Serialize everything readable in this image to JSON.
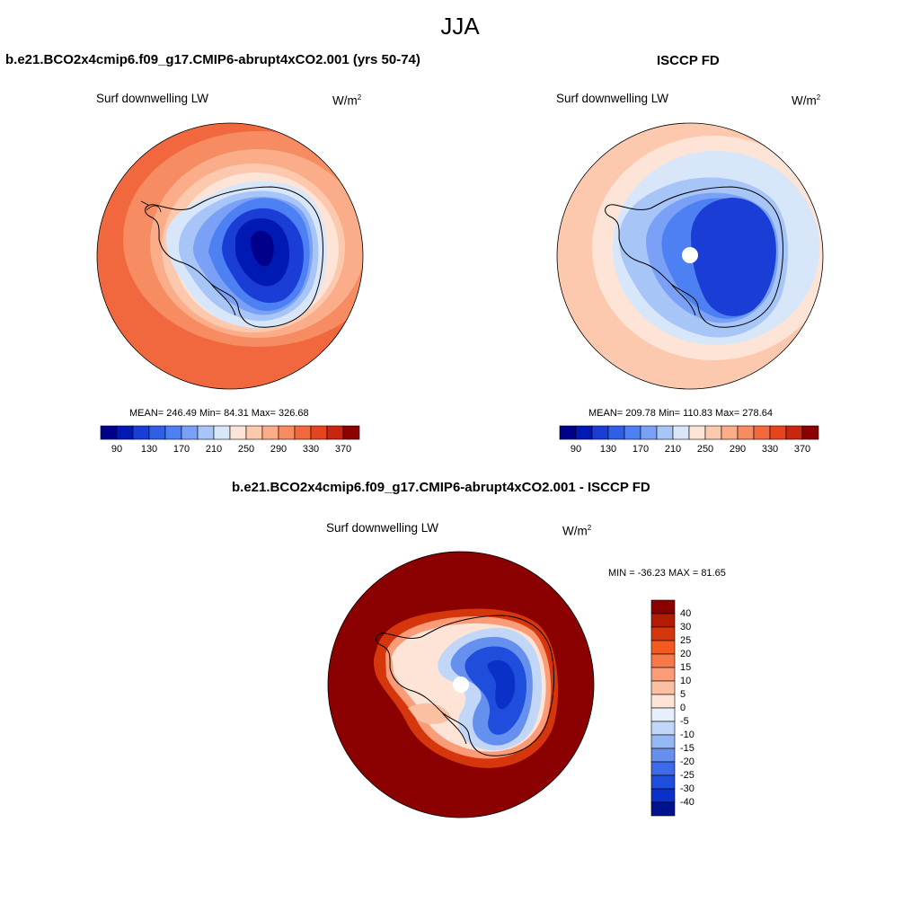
{
  "figure": {
    "title": "JJA"
  },
  "panels": [
    {
      "id": "model",
      "title": "b.e21.BCO2x4cmip6.f09_g17.CMIP6-abrupt4xCO2.001 (yrs 50-74)",
      "variable": "Surf downwelling LW",
      "units": "W/m",
      "units_sup": "2",
      "stats": "MEAN= 246.49  Min=  84.31  Max= 326.68"
    },
    {
      "id": "obs",
      "title": "ISCCP FD",
      "variable": "Surf downwelling LW",
      "units": "W/m",
      "units_sup": "2",
      "stats": "MEAN= 209.78  Min= 110.83  Max= 278.64"
    },
    {
      "id": "diff",
      "title": "b.e21.BCO2x4cmip6.f09_g17.CMIP6-abrupt4xCO2.001 - ISCCP FD",
      "variable": "Surf downwelling LW",
      "units": "W/m",
      "units_sup": "2",
      "stats": "MIN = -36.23 MAX =  81.65"
    }
  ],
  "colorbar_abs": {
    "colors": [
      "#00008b",
      "#0019b3",
      "#1a3dd6",
      "#2e5fe6",
      "#4d80f2",
      "#7aa1f5",
      "#a8c5f7",
      "#d8e6fa",
      "#fde4d6",
      "#fcc9ae",
      "#fbac88",
      "#f78b62",
      "#f2683e",
      "#e6441f",
      "#c82610",
      "#8b0000"
    ],
    "tick_labels": [
      "90",
      "130",
      "170",
      "210",
      "250",
      "290",
      "330",
      "370"
    ]
  },
  "colorbar_diff": {
    "colors": [
      "#8b0000",
      "#b01c04",
      "#d6360c",
      "#f25a1f",
      "#f7794a",
      "#fa9c78",
      "#fbbfa1",
      "#fde4d6",
      "#e6f0fc",
      "#c2d7f7",
      "#95b7f2",
      "#6690ee",
      "#3d6ae8",
      "#1f4ddc",
      "#0a30c8",
      "#00138f"
    ],
    "tick_labels": [
      "40",
      "30",
      "25",
      "20",
      "15",
      "10",
      "5",
      "0",
      "-5",
      "-10",
      "-15",
      "-20",
      "-25",
      "-30",
      "-40"
    ]
  }
}
